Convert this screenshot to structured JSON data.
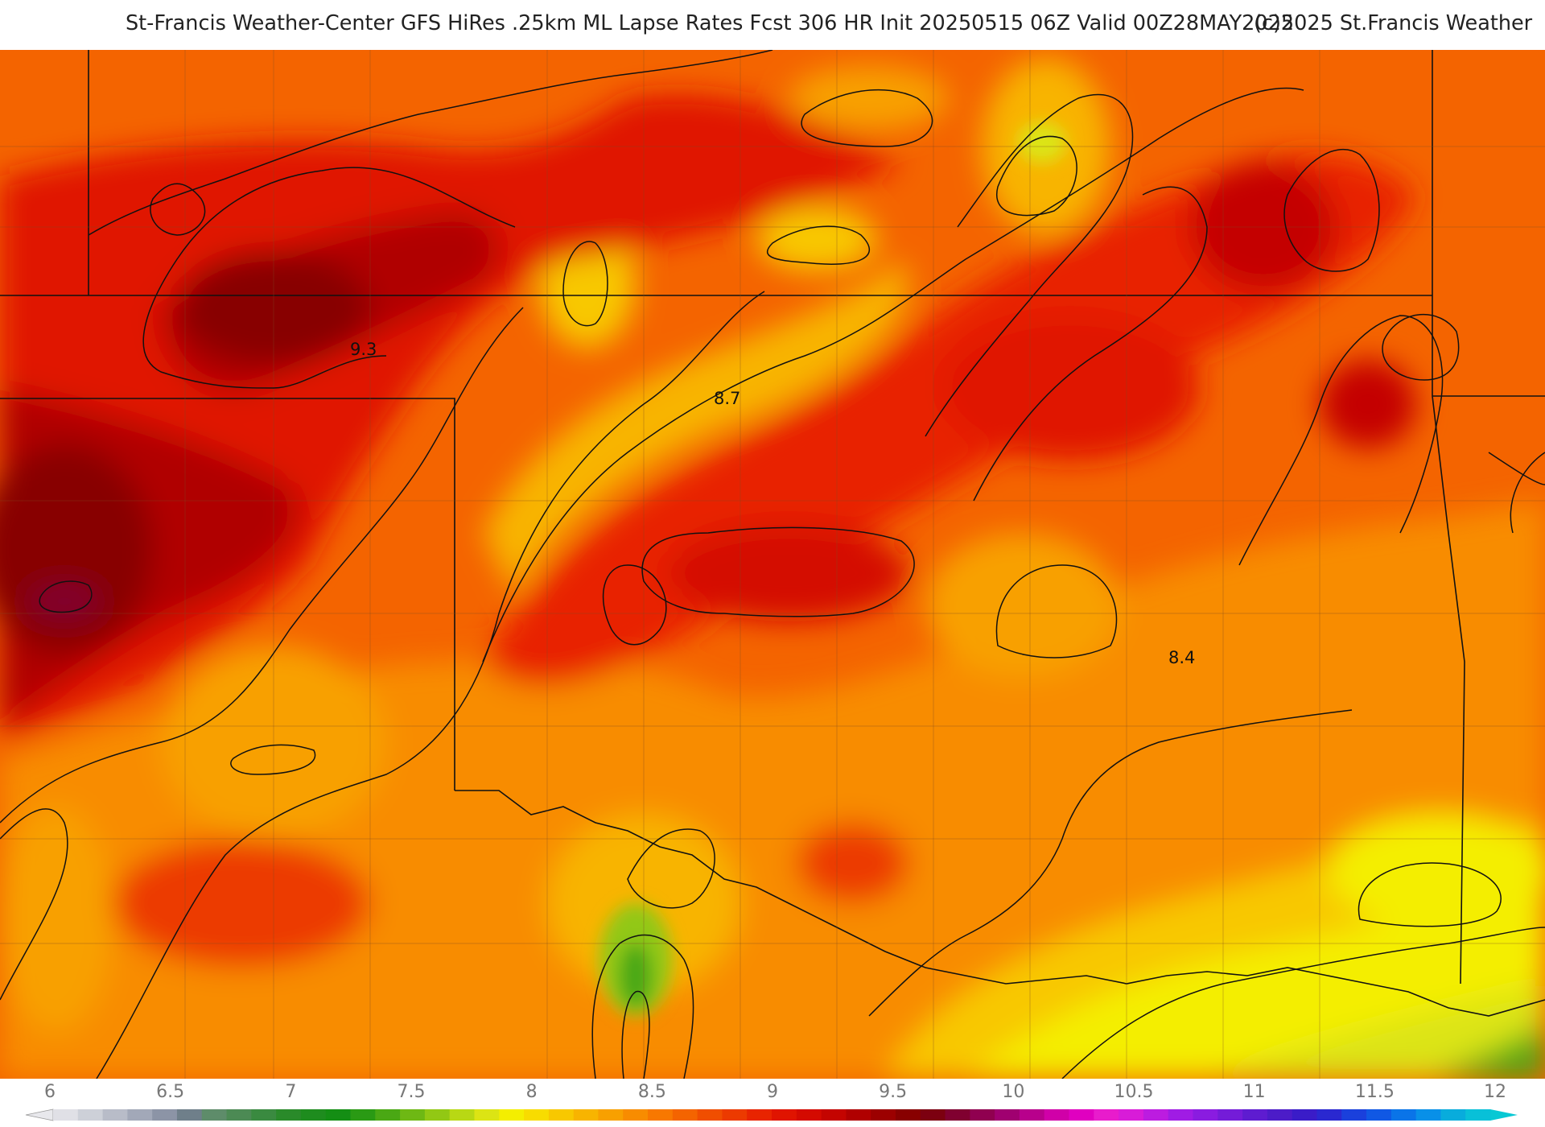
{
  "header": {
    "title": "St-Francis Weather-Center GFS HiRes .25km ML Lapse Rates  Fcst 306 HR Init 20250515 06Z  Valid 00Z28MAY2025",
    "copyright": "(c)2025 St.Francis Weather"
  },
  "map": {
    "field": "ML Lapse Rates",
    "contour_labels": [
      "9.3",
      "8.7",
      "8.4"
    ]
  },
  "legend": {
    "ticks": [
      "6",
      "6.5",
      "7",
      "7.5",
      "8",
      "8.5",
      "9",
      "9.5",
      "10",
      "10.5",
      "11",
      "11.5",
      "12"
    ],
    "min": 6,
    "max": 12,
    "colors": [
      "#e0e0e6",
      "#cdd0d8",
      "#b8bcc8",
      "#a2a8b8",
      "#8c94a6",
      "#6f7f8a",
      "#5e8c6a",
      "#4c8a54",
      "#3a8a40",
      "#2a8a2a",
      "#1e8c1e",
      "#148e14",
      "#2a9a14",
      "#4aa814",
      "#6eb814",
      "#92c814",
      "#b8d814",
      "#dce414",
      "#f4ee00",
      "#f8dc00",
      "#f8c800",
      "#f8b400",
      "#f8a000",
      "#f88c00",
      "#f87800",
      "#f46400",
      "#f04e00",
      "#ec3a00",
      "#e82400",
      "#e01400",
      "#d40a00",
      "#c40400",
      "#b00000",
      "#9c0000",
      "#880000",
      "#7c0010",
      "#800030",
      "#900050",
      "#a00070",
      "#b8008c",
      "#d000a8",
      "#e000c0",
      "#e81ccc",
      "#d81cd8",
      "#bc1ce0",
      "#a01ce4",
      "#8a1ce0",
      "#741cd8",
      "#5e1cd0",
      "#4c1cc8",
      "#3a1cc8",
      "#2a28d0",
      "#1a40dc",
      "#1058e4",
      "#0a74e8",
      "#0890e8",
      "#08acdc",
      "#08c0d8"
    ],
    "arrow_left_color": "#e8e8ec",
    "arrow_right_color": "#08c8d4"
  }
}
